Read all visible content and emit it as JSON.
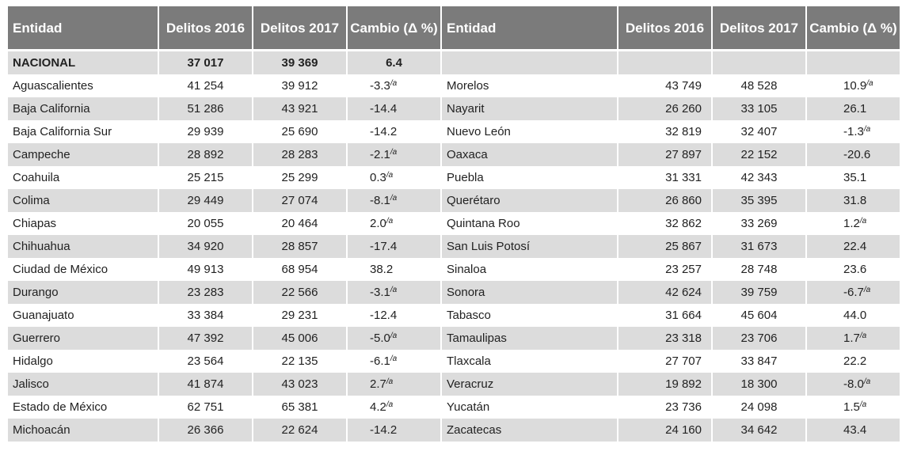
{
  "headers": {
    "left": {
      "entidad": "Entidad",
      "d2016": "Delitos 2016",
      "d2017": "Delitos 2017",
      "cambio": "Cambio (Δ %)"
    },
    "right": {
      "entidad": "Entidad",
      "d2016": "Delitos 2016",
      "d2017": "Delitos 2017",
      "cambio": "Cambio (Δ %)"
    }
  },
  "nacional": {
    "name": "NACIONAL",
    "d2016": "37 017",
    "d2017": "39 369",
    "cambio": "6.4"
  },
  "left_rows": [
    {
      "name": "Aguascalientes",
      "d2016": "41 254",
      "d2017": "39 912",
      "cambio": "-3.3",
      "note": "/a"
    },
    {
      "name": "Baja California",
      "d2016": "51 286",
      "d2017": "43 921",
      "cambio": "-14.4",
      "note": ""
    },
    {
      "name": "Baja California Sur",
      "d2016": "29 939",
      "d2017": "25 690",
      "cambio": "-14.2",
      "note": ""
    },
    {
      "name": "Campeche",
      "d2016": "28 892",
      "d2017": "28 283",
      "cambio": "-2.1",
      "note": "/a"
    },
    {
      "name": "Coahuila",
      "d2016": "25 215",
      "d2017": "25 299",
      "cambio": "0.3",
      "note": "/a"
    },
    {
      "name": "Colima",
      "d2016": "29 449",
      "d2017": "27 074",
      "cambio": "-8.1",
      "note": "/a"
    },
    {
      "name": "Chiapas",
      "d2016": "20 055",
      "d2017": "20 464",
      "cambio": "2.0",
      "note": "/a"
    },
    {
      "name": "Chihuahua",
      "d2016": "34 920",
      "d2017": "28 857",
      "cambio": "-17.4",
      "note": ""
    },
    {
      "name": "Ciudad de México",
      "d2016": "49 913",
      "d2017": "68 954",
      "cambio": "38.2",
      "note": ""
    },
    {
      "name": "Durango",
      "d2016": "23 283",
      "d2017": "22 566",
      "cambio": "-3.1",
      "note": "/a"
    },
    {
      "name": "Guanajuato",
      "d2016": "33 384",
      "d2017": "29 231",
      "cambio": "-12.4",
      "note": ""
    },
    {
      "name": "Guerrero",
      "d2016": "47 392",
      "d2017": "45 006",
      "cambio": "-5.0",
      "note": "/a"
    },
    {
      "name": "Hidalgo",
      "d2016": "23 564",
      "d2017": "22 135",
      "cambio": "-6.1",
      "note": "/a"
    },
    {
      "name": "Jalisco",
      "d2016": "41 874",
      "d2017": "43 023",
      "cambio": "2.7",
      "note": "/a"
    },
    {
      "name": "Estado de México",
      "d2016": "62 751",
      "d2017": "65 381",
      "cambio": "4.2",
      "note": "/a"
    },
    {
      "name": "Michoacán",
      "d2016": "26 366",
      "d2017": "22 624",
      "cambio": "-14.2",
      "note": ""
    }
  ],
  "right_rows": [
    {
      "name": "Morelos",
      "d2016": "43 749",
      "d2017": "48 528",
      "cambio": "10.9",
      "note": "/a"
    },
    {
      "name": "Nayarit",
      "d2016": "26 260",
      "d2017": "33 105",
      "cambio": "26.1",
      "note": ""
    },
    {
      "name": "Nuevo León",
      "d2016": "32 819",
      "d2017": "32 407",
      "cambio": "-1.3",
      "note": "/a"
    },
    {
      "name": "Oaxaca",
      "d2016": "27 897",
      "d2017": "22 152",
      "cambio": "-20.6",
      "note": ""
    },
    {
      "name": "Puebla",
      "d2016": "31 331",
      "d2017": "42 343",
      "cambio": "35.1",
      "note": ""
    },
    {
      "name": "Querétaro",
      "d2016": "26 860",
      "d2017": "35 395",
      "cambio": "31.8",
      "note": ""
    },
    {
      "name": "Quintana Roo",
      "d2016": "32 862",
      "d2017": "33 269",
      "cambio": "1.2",
      "note": "/a"
    },
    {
      "name": "San Luis Potosí",
      "d2016": "25 867",
      "d2017": "31 673",
      "cambio": "22.4",
      "note": ""
    },
    {
      "name": "Sinaloa",
      "d2016": "23 257",
      "d2017": "28 748",
      "cambio": "23.6",
      "note": ""
    },
    {
      "name": "Sonora",
      "d2016": "42 624",
      "d2017": "39 759",
      "cambio": "-6.7",
      "note": "/a"
    },
    {
      "name": "Tabasco",
      "d2016": "31 664",
      "d2017": "45 604",
      "cambio": "44.0",
      "note": ""
    },
    {
      "name": "Tamaulipas",
      "d2016": "23 318",
      "d2017": "23 706",
      "cambio": "1.7",
      "note": "/a"
    },
    {
      "name": "Tlaxcala",
      "d2016": "27 707",
      "d2017": "33 847",
      "cambio": "22.2",
      "note": ""
    },
    {
      "name": "Veracruz",
      "d2016": "19 892",
      "d2017": "18 300",
      "cambio": "-8.0",
      "note": "/a"
    },
    {
      "name": "Yucatán",
      "d2016": "23 736",
      "d2017": "24 098",
      "cambio": "1.5",
      "note": "/a"
    },
    {
      "name": "Zacatecas",
      "d2016": "24 160",
      "d2017": "34 642",
      "cambio": "43.4",
      "note": ""
    }
  ]
}
